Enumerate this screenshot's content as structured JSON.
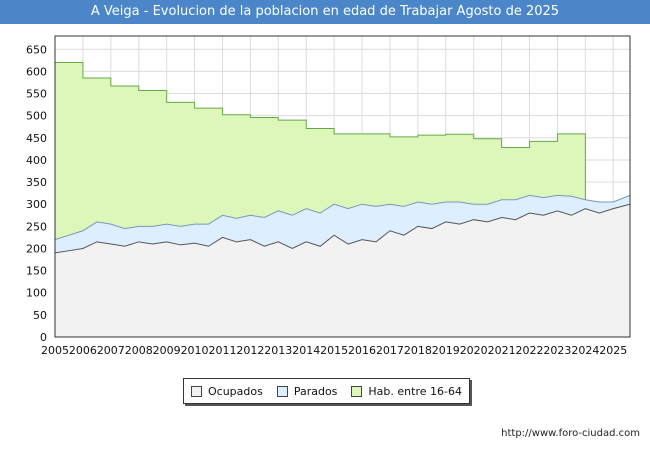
{
  "chart_data": {
    "type": "area",
    "title": "A Veiga - Evolucion de la poblacion en edad de Trabajar Agosto de 2025",
    "xlabel": "",
    "ylabel": "",
    "xlim": [
      2005,
      2025.6
    ],
    "ylim": [
      0,
      680
    ],
    "y_ticks": [
      0,
      50,
      100,
      150,
      200,
      250,
      300,
      350,
      400,
      450,
      500,
      550,
      600,
      650
    ],
    "x_tick_labels": [
      "2005",
      "2006",
      "2007",
      "2008",
      "2009",
      "2010",
      "2011",
      "2012",
      "2013",
      "2014",
      "2015",
      "2016",
      "2017",
      "2018",
      "2019",
      "2020",
      "2021",
      "2022",
      "2023",
      "2024",
      "2025"
    ],
    "grid": true,
    "legend_position": "bottom",
    "series": [
      {
        "name": "Ocupados",
        "color": "#f2f2f2",
        "line_color": "#555555",
        "x": [
          2005.0,
          2005.5,
          2006.0,
          2006.5,
          2007.0,
          2007.5,
          2008.0,
          2008.5,
          2009.0,
          2009.5,
          2010.0,
          2010.5,
          2011.0,
          2011.5,
          2012.0,
          2012.5,
          2013.0,
          2013.5,
          2014.0,
          2014.5,
          2015.0,
          2015.5,
          2016.0,
          2016.5,
          2017.0,
          2017.5,
          2018.0,
          2018.5,
          2019.0,
          2019.5,
          2020.0,
          2020.5,
          2021.0,
          2021.5,
          2022.0,
          2022.5,
          2023.0,
          2023.5,
          2024.0,
          2024.5,
          2025.0,
          2025.6
        ],
        "values": [
          190,
          195,
          200,
          215,
          210,
          205,
          215,
          210,
          215,
          208,
          212,
          205,
          225,
          215,
          220,
          205,
          215,
          200,
          215,
          205,
          230,
          210,
          220,
          215,
          240,
          230,
          250,
          245,
          260,
          255,
          265,
          260,
          270,
          265,
          280,
          275,
          285,
          275,
          290,
          280,
          290,
          300
        ]
      },
      {
        "name": "Parados",
        "color": "#ddeeff",
        "line_color": "#7799bb",
        "x": [
          2005.0,
          2005.5,
          2006.0,
          2006.5,
          2007.0,
          2007.5,
          2008.0,
          2008.5,
          2009.0,
          2009.5,
          2010.0,
          2010.5,
          2011.0,
          2011.5,
          2012.0,
          2012.5,
          2013.0,
          2013.5,
          2014.0,
          2014.5,
          2015.0,
          2015.5,
          2016.0,
          2016.5,
          2017.0,
          2017.5,
          2018.0,
          2018.5,
          2019.0,
          2019.5,
          2020.0,
          2020.5,
          2021.0,
          2021.5,
          2022.0,
          2022.5,
          2023.0,
          2023.5,
          2024.0,
          2024.5,
          2025.0,
          2025.6
        ],
        "values": [
          220,
          230,
          240,
          260,
          255,
          245,
          250,
          250,
          255,
          250,
          255,
          255,
          275,
          268,
          275,
          270,
          285,
          275,
          290,
          280,
          300,
          290,
          300,
          295,
          300,
          295,
          305,
          300,
          305,
          305,
          300,
          300,
          310,
          310,
          320,
          315,
          320,
          318,
          310,
          305,
          305,
          320
        ]
      },
      {
        "name": "Hab. entre 16-64",
        "color": "#ddf7bb",
        "line_color": "#66aa44",
        "x": [
          2005,
          2006,
          2007,
          2008,
          2009,
          2010,
          2011,
          2012,
          2013,
          2014,
          2015,
          2016,
          2017,
          2018,
          2019,
          2020,
          2021,
          2022,
          2023,
          2024
        ],
        "values": [
          620,
          585,
          567,
          557,
          530,
          517,
          502,
          496,
          490,
          471,
          459,
          459,
          452,
          456,
          458,
          448,
          428,
          442,
          459,
          305
        ]
      }
    ]
  },
  "legend": {
    "items": [
      {
        "label": "Ocupados",
        "color": "#f2f2f2"
      },
      {
        "label": "Parados",
        "color": "#ddeeff"
      },
      {
        "label": "Hab. entre 16-64",
        "color": "#ddf7bb"
      }
    ]
  },
  "source": "http://www.foro-ciudad.com"
}
